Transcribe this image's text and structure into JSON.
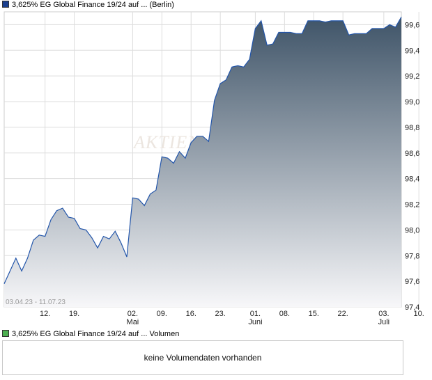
{
  "price_legend": {
    "label": "3,625% EG Global Finance 19/24 auf ... (Berlin)",
    "swatch_color": "#1a3f8f"
  },
  "volume_legend": {
    "label": "3,625% EG Global Finance 19/24 auf ... Volumen",
    "swatch_color": "#4caf50"
  },
  "volume_panel": {
    "message": "keine Volumendaten vorhanden"
  },
  "watermark": "AKTIEN",
  "date_range": "03.04.23 - 11.07.23",
  "colors": {
    "line": "#2255aa",
    "fill_top": "#3f5468",
    "fill_bottom": "#f7f7f9",
    "grid": "#dddddd"
  },
  "chart_data": {
    "type": "area",
    "x_start": "03.04.23",
    "x_end": "11.07.23",
    "ylim": [
      97.4,
      99.7
    ],
    "y_ticks": [
      "97,4",
      "97,6",
      "97,8",
      "98,0",
      "98,2",
      "98,4",
      "98,6",
      "98,8",
      "99,0",
      "99,2",
      "99,4",
      "99,6"
    ],
    "x_ticks": [
      {
        "label": "12.",
        "sub": "",
        "index": 7
      },
      {
        "label": "19.",
        "sub": "",
        "index": 12
      },
      {
        "label": "02.",
        "sub": "Mai",
        "index": 22
      },
      {
        "label": "09.",
        "sub": "",
        "index": 27
      },
      {
        "label": "16.",
        "sub": "",
        "index": 32
      },
      {
        "label": "23.",
        "sub": "",
        "index": 37
      },
      {
        "label": "01.",
        "sub": "Juni",
        "index": 43
      },
      {
        "label": "08.",
        "sub": "",
        "index": 48
      },
      {
        "label": "15.",
        "sub": "",
        "index": 53
      },
      {
        "label": "22.",
        "sub": "",
        "index": 58
      },
      {
        "label": "03.",
        "sub": "Juli",
        "index": 65
      },
      {
        "label": "10.",
        "sub": "",
        "index": 71
      }
    ],
    "values": [
      97.58,
      97.68,
      97.78,
      97.68,
      97.78,
      97.92,
      97.96,
      97.95,
      98.08,
      98.15,
      98.17,
      98.1,
      98.09,
      98.01,
      98.0,
      97.94,
      97.86,
      97.95,
      97.93,
      97.99,
      97.9,
      97.79,
      98.25,
      98.24,
      98.19,
      98.28,
      98.31,
      98.57,
      98.56,
      98.52,
      98.61,
      98.56,
      98.68,
      98.73,
      98.73,
      98.69,
      99.01,
      99.14,
      99.17,
      99.27,
      99.28,
      99.27,
      99.33,
      99.57,
      99.63,
      99.44,
      99.45,
      99.54,
      99.54,
      99.54,
      99.53,
      99.53,
      99.63,
      99.63,
      99.63,
      99.62,
      99.63,
      99.63,
      99.63,
      99.52,
      99.53,
      99.53,
      99.53,
      99.57,
      99.57,
      99.57,
      99.6,
      99.58,
      99.66
    ]
  }
}
